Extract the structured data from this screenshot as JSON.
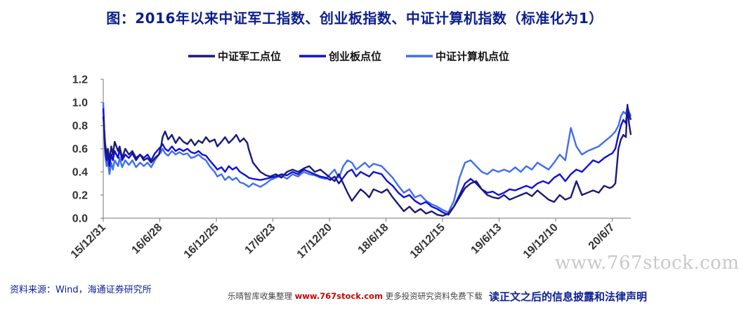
{
  "page": {
    "source": "资料来源：Wind，海通证券研究所",
    "footer_left": "乐晴智库收集整理",
    "footer_site": "www.767stock.com",
    "footer_right": "更多投资研究资料免费下载",
    "disclaimer": "读正文之后的信息披露和法律声明",
    "watermark": "www.767stock.com"
  },
  "colors": {
    "military": "#1a1a78",
    "chinext": "#1010d8",
    "computer": "#3f6ef0",
    "title": "#0b1f8f",
    "axis": "#777777"
  },
  "chart_data": {
    "type": "line",
    "title": "图：2016年以来中证军工指数、创业板指数、中证计算机指数（标准化为1）",
    "xlabel": "",
    "ylabel": "",
    "ylim": [
      0.0,
      1.2
    ],
    "yticks": [
      "0.0",
      "0.2",
      "0.4",
      "0.6",
      "0.8",
      "1.0",
      "1.2"
    ],
    "xticks": [
      "15/12/31",
      "16/6/28",
      "16/12/25",
      "17/6/23",
      "17/12/20",
      "18/6/18",
      "18/12/15",
      "19/6/13",
      "19/12/10",
      "20/6/7"
    ],
    "legend_position": "top",
    "grid": false,
    "series": [
      {
        "name": "中证军工点位",
        "x": [
          "2015-12-31",
          "2016-01-06",
          "2016-01-11",
          "2016-01-15",
          "2016-01-20",
          "2016-01-26",
          "2016-01-31",
          "2016-02-06",
          "2016-02-17",
          "2016-02-22",
          "2016-03-01",
          "2016-03-11",
          "2016-03-23",
          "2016-04-03",
          "2016-04-15",
          "2016-04-28",
          "2016-05-10",
          "2016-05-22",
          "2016-06-03",
          "2016-06-15",
          "2016-06-28",
          "2016-07-05",
          "2016-07-10",
          "2016-07-18",
          "2016-07-28",
          "2016-08-09",
          "2016-08-21",
          "2016-09-02",
          "2016-09-15",
          "2016-09-28",
          "2016-10-10",
          "2016-10-22",
          "2016-11-03",
          "2016-11-15",
          "2016-11-27",
          "2016-12-09",
          "2016-12-25",
          "2017-01-03",
          "2017-01-16",
          "2017-01-28",
          "2017-02-09",
          "2017-02-21",
          "2017-03-05",
          "2017-03-17",
          "2017-03-29",
          "2017-04-10",
          "2017-04-14",
          "2017-04-28",
          "2017-05-22",
          "2017-06-09",
          "2017-06-23",
          "2017-07-11",
          "2017-07-29",
          "2017-08-16",
          "2017-09-03",
          "2017-09-21",
          "2017-10-09",
          "2017-10-27",
          "2017-11-14",
          "2017-12-02",
          "2017-12-20",
          "2018-01-03",
          "2018-01-17",
          "2018-01-31",
          "2018-02-14",
          "2018-02-28",
          "2018-03-14",
          "2018-03-28",
          "2018-04-11",
          "2018-04-25",
          "2018-05-09",
          "2018-05-23",
          "2018-06-18",
          "2018-07-06",
          "2018-07-24",
          "2018-08-11",
          "2018-08-29",
          "2018-09-16",
          "2018-10-04",
          "2018-10-22",
          "2018-11-09",
          "2018-11-27",
          "2018-12-15",
          "2019-01-02",
          "2019-01-20",
          "2019-02-07",
          "2019-02-25",
          "2019-03-15",
          "2019-04-02",
          "2019-04-20",
          "2019-05-08",
          "2019-05-26",
          "2019-06-13",
          "2019-07-01",
          "2019-07-19",
          "2019-08-06",
          "2019-08-24",
          "2019-09-11",
          "2019-09-29",
          "2019-10-17",
          "2019-11-04",
          "2019-11-22",
          "2019-12-10",
          "2019-12-28",
          "2020-01-15",
          "2020-02-02",
          "2020-02-20",
          "2020-03-09",
          "2020-03-27",
          "2020-04-14",
          "2020-05-02",
          "2020-05-20",
          "2020-06-07",
          "2020-06-25",
          "2020-07-03",
          "2020-07-13",
          "2020-07-23",
          "2020-07-31",
          "2020-08-08",
          "2020-08-16",
          "2020-08-21",
          "2020-08-26",
          "2020-09-01"
        ],
        "values": [
          0.88,
          0.65,
          0.55,
          0.6,
          0.5,
          0.62,
          0.55,
          0.66,
          0.58,
          0.62,
          0.52,
          0.6,
          0.55,
          0.58,
          0.52,
          0.55,
          0.5,
          0.52,
          0.48,
          0.52,
          0.55,
          0.62,
          0.7,
          0.75,
          0.68,
          0.72,
          0.65,
          0.7,
          0.66,
          0.64,
          0.68,
          0.63,
          0.67,
          0.65,
          0.7,
          0.66,
          0.68,
          0.62,
          0.66,
          0.7,
          0.65,
          0.68,
          0.72,
          0.66,
          0.69,
          0.65,
          0.6,
          0.48,
          0.4,
          0.37,
          0.36,
          0.38,
          0.35,
          0.4,
          0.42,
          0.4,
          0.43,
          0.45,
          0.4,
          0.42,
          0.38,
          0.35,
          0.32,
          0.38,
          0.3,
          0.22,
          0.15,
          0.2,
          0.25,
          0.22,
          0.18,
          0.25,
          0.22,
          0.25,
          0.18,
          0.12,
          0.06,
          0.1,
          0.05,
          0.08,
          0.04,
          0.06,
          0.03,
          0.02,
          0.04,
          0.1,
          0.18,
          0.26,
          0.3,
          0.32,
          0.25,
          0.2,
          0.18,
          0.17,
          0.2,
          0.16,
          0.18,
          0.2,
          0.22,
          0.19,
          0.24,
          0.2,
          0.16,
          0.14,
          0.2,
          0.16,
          0.18,
          0.32,
          0.2,
          0.22,
          0.24,
          0.22,
          0.28,
          0.26,
          0.27,
          0.3,
          0.6,
          0.68,
          0.72,
          0.7,
          0.98,
          0.82,
          0.72
        ]
      },
      {
        "name": "创业板点位",
        "x": [
          "2015-12-31",
          "2016-01-06",
          "2016-01-11",
          "2016-01-15",
          "2016-01-20",
          "2016-01-26",
          "2016-01-31",
          "2016-02-06",
          "2016-02-17",
          "2016-02-22",
          "2016-03-01",
          "2016-03-11",
          "2016-03-23",
          "2016-04-03",
          "2016-04-15",
          "2016-04-28",
          "2016-05-10",
          "2016-05-22",
          "2016-06-03",
          "2016-06-15",
          "2016-06-28",
          "2016-07-05",
          "2016-07-10",
          "2016-07-18",
          "2016-07-28",
          "2016-08-09",
          "2016-08-21",
          "2016-09-02",
          "2016-09-15",
          "2016-09-28",
          "2016-10-10",
          "2016-10-22",
          "2016-11-03",
          "2016-11-15",
          "2016-11-27",
          "2016-12-09",
          "2016-12-25",
          "2017-01-03",
          "2017-01-16",
          "2017-01-28",
          "2017-02-09",
          "2017-02-21",
          "2017-03-05",
          "2017-03-17",
          "2017-03-29",
          "2017-04-10",
          "2017-04-14",
          "2017-04-28",
          "2017-05-22",
          "2017-06-09",
          "2017-06-23",
          "2017-07-11",
          "2017-07-29",
          "2017-08-16",
          "2017-09-03",
          "2017-09-21",
          "2017-10-09",
          "2017-10-27",
          "2017-11-14",
          "2017-12-02",
          "2017-12-20",
          "2018-01-03",
          "2018-01-17",
          "2018-01-31",
          "2018-02-14",
          "2018-02-28",
          "2018-03-14",
          "2018-03-28",
          "2018-04-11",
          "2018-04-25",
          "2018-05-09",
          "2018-05-23",
          "2018-06-18",
          "2018-07-06",
          "2018-07-24",
          "2018-08-11",
          "2018-08-29",
          "2018-09-16",
          "2018-10-04",
          "2018-10-22",
          "2018-11-09",
          "2018-11-27",
          "2018-12-15",
          "2019-01-02",
          "2019-01-20",
          "2019-02-07",
          "2019-02-25",
          "2019-03-15",
          "2019-04-02",
          "2019-04-20",
          "2019-05-08",
          "2019-05-26",
          "2019-06-13",
          "2019-07-01",
          "2019-07-19",
          "2019-08-06",
          "2019-08-24",
          "2019-09-11",
          "2019-09-29",
          "2019-10-17",
          "2019-11-04",
          "2019-11-22",
          "2019-12-10",
          "2019-12-28",
          "2020-01-15",
          "2020-02-02",
          "2020-02-20",
          "2020-03-09",
          "2020-03-27",
          "2020-04-14",
          "2020-05-02",
          "2020-05-20",
          "2020-06-07",
          "2020-06-25",
          "2020-07-03",
          "2020-07-13",
          "2020-07-23",
          "2020-07-31",
          "2020-08-08",
          "2020-08-16",
          "2020-08-21",
          "2020-08-26",
          "2020-09-01"
        ],
        "values": [
          0.95,
          0.6,
          0.5,
          0.55,
          0.45,
          0.55,
          0.5,
          0.58,
          0.52,
          0.6,
          0.5,
          0.55,
          0.52,
          0.56,
          0.5,
          0.55,
          0.52,
          0.55,
          0.5,
          0.56,
          0.6,
          0.62,
          0.64,
          0.6,
          0.58,
          0.62,
          0.58,
          0.6,
          0.58,
          0.6,
          0.57,
          0.56,
          0.58,
          0.55,
          0.54,
          0.5,
          0.45,
          0.42,
          0.44,
          0.4,
          0.45,
          0.42,
          0.44,
          0.4,
          0.38,
          0.36,
          0.35,
          0.34,
          0.33,
          0.34,
          0.35,
          0.36,
          0.38,
          0.37,
          0.4,
          0.38,
          0.42,
          0.4,
          0.38,
          0.36,
          0.35,
          0.33,
          0.36,
          0.3,
          0.35,
          0.4,
          0.42,
          0.36,
          0.4,
          0.38,
          0.36,
          0.4,
          0.38,
          0.32,
          0.28,
          0.22,
          0.18,
          0.2,
          0.15,
          0.12,
          0.14,
          0.1,
          0.08,
          0.05,
          0.03,
          0.1,
          0.2,
          0.3,
          0.34,
          0.3,
          0.25,
          0.22,
          0.23,
          0.2,
          0.22,
          0.25,
          0.24,
          0.26,
          0.28,
          0.26,
          0.3,
          0.32,
          0.3,
          0.35,
          0.38,
          0.32,
          0.38,
          0.42,
          0.4,
          0.45,
          0.5,
          0.48,
          0.52,
          0.55,
          0.56,
          0.6,
          0.72,
          0.8,
          0.85,
          0.82,
          0.95,
          0.9,
          0.85
        ]
      },
      {
        "name": "中证计算机点位",
        "x": [
          "2015-12-31",
          "2016-01-06",
          "2016-01-11",
          "2016-01-15",
          "2016-01-20",
          "2016-01-26",
          "2016-01-31",
          "2016-02-06",
          "2016-02-17",
          "2016-02-22",
          "2016-03-01",
          "2016-03-11",
          "2016-03-23",
          "2016-04-03",
          "2016-04-15",
          "2016-04-28",
          "2016-05-10",
          "2016-05-22",
          "2016-06-03",
          "2016-06-15",
          "2016-06-28",
          "2016-07-05",
          "2016-07-10",
          "2016-07-18",
          "2016-07-28",
          "2016-08-09",
          "2016-08-21",
          "2016-09-02",
          "2016-09-15",
          "2016-09-28",
          "2016-10-10",
          "2016-10-22",
          "2016-11-03",
          "2016-11-15",
          "2016-11-27",
          "2016-12-09",
          "2016-12-25",
          "2017-01-03",
          "2017-01-16",
          "2017-01-28",
          "2017-02-09",
          "2017-02-21",
          "2017-03-05",
          "2017-03-17",
          "2017-03-29",
          "2017-04-10",
          "2017-04-14",
          "2017-04-28",
          "2017-05-22",
          "2017-06-09",
          "2017-06-23",
          "2017-07-11",
          "2017-07-29",
          "2017-08-16",
          "2017-09-03",
          "2017-09-21",
          "2017-10-09",
          "2017-10-27",
          "2017-11-14",
          "2017-12-02",
          "2017-12-20",
          "2018-01-03",
          "2018-01-17",
          "2018-01-31",
          "2018-02-14",
          "2018-02-28",
          "2018-03-14",
          "2018-03-28",
          "2018-04-11",
          "2018-04-25",
          "2018-05-09",
          "2018-05-23",
          "2018-06-18",
          "2018-07-06",
          "2018-07-24",
          "2018-08-11",
          "2018-08-29",
          "2018-09-16",
          "2018-10-04",
          "2018-10-22",
          "2018-11-09",
          "2018-11-27",
          "2018-12-15",
          "2019-01-02",
          "2019-01-20",
          "2019-02-07",
          "2019-02-25",
          "2019-03-15",
          "2019-04-02",
          "2019-04-20",
          "2019-05-08",
          "2019-05-26",
          "2019-06-13",
          "2019-07-01",
          "2019-07-19",
          "2019-08-06",
          "2019-08-24",
          "2019-09-11",
          "2019-09-29",
          "2019-10-17",
          "2019-11-04",
          "2019-11-22",
          "2019-12-10",
          "2019-12-28",
          "2020-01-15",
          "2020-02-02",
          "2020-02-20",
          "2020-03-09",
          "2020-03-27",
          "2020-04-14",
          "2020-05-02",
          "2020-05-20",
          "2020-06-07",
          "2020-06-25",
          "2020-07-03",
          "2020-07-13",
          "2020-07-23",
          "2020-07-31",
          "2020-08-08",
          "2020-08-16",
          "2020-08-21",
          "2020-08-26",
          "2020-09-01"
        ],
        "values": [
          1.0,
          0.55,
          0.45,
          0.5,
          0.38,
          0.48,
          0.42,
          0.5,
          0.45,
          0.52,
          0.44,
          0.5,
          0.46,
          0.5,
          0.44,
          0.48,
          0.45,
          0.48,
          0.44,
          0.5,
          0.55,
          0.57,
          0.6,
          0.56,
          0.54,
          0.58,
          0.55,
          0.57,
          0.55,
          0.56,
          0.52,
          0.53,
          0.55,
          0.52,
          0.5,
          0.45,
          0.4,
          0.36,
          0.38,
          0.33,
          0.36,
          0.33,
          0.35,
          0.31,
          0.3,
          0.28,
          0.27,
          0.3,
          0.27,
          0.3,
          0.33,
          0.35,
          0.37,
          0.34,
          0.38,
          0.36,
          0.4,
          0.38,
          0.37,
          0.35,
          0.34,
          0.38,
          0.42,
          0.35,
          0.45,
          0.5,
          0.48,
          0.42,
          0.45,
          0.48,
          0.44,
          0.47,
          0.45,
          0.4,
          0.35,
          0.28,
          0.22,
          0.25,
          0.18,
          0.2,
          0.15,
          0.12,
          0.1,
          0.07,
          0.05,
          0.15,
          0.35,
          0.48,
          0.5,
          0.45,
          0.4,
          0.38,
          0.42,
          0.4,
          0.42,
          0.4,
          0.44,
          0.4,
          0.45,
          0.42,
          0.48,
          0.45,
          0.42,
          0.48,
          0.55,
          0.5,
          0.78,
          0.62,
          0.55,
          0.58,
          0.6,
          0.62,
          0.66,
          0.7,
          0.72,
          0.75,
          0.8,
          0.88,
          0.92,
          0.9,
          0.96,
          0.92,
          0.88
        ]
      }
    ]
  }
}
